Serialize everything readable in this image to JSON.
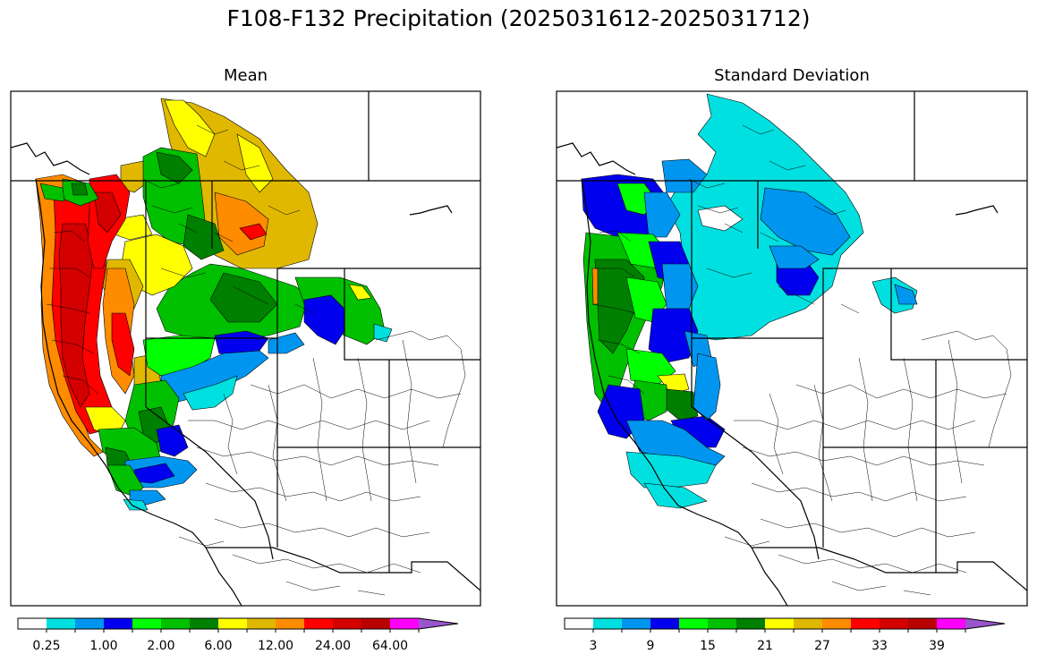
{
  "figure": {
    "title": "F108-F132 Precipitation (2025031612-2025031712)"
  },
  "panels": [
    {
      "title": "Mean",
      "colorbar": {
        "colors": [
          "#ffffff",
          "#00e0e0",
          "#0096f0",
          "#0000ee",
          "#00ff00",
          "#00c000",
          "#008000",
          "#ffff00",
          "#e0b800",
          "#ff8c00",
          "#ff0000",
          "#d40000",
          "#b80000",
          "#ff00ff",
          "#9955cc"
        ],
        "tick_labels": [
          "0.25",
          "1.00",
          "2.00",
          "6.00",
          "12.00",
          "24.00",
          "64.00"
        ]
      }
    },
    {
      "title": "Standard Deviation",
      "colorbar": {
        "colors": [
          "#ffffff",
          "#00e0e0",
          "#0096f0",
          "#0000ee",
          "#00ff00",
          "#00c000",
          "#008000",
          "#ffff00",
          "#e0b800",
          "#ff8c00",
          "#ff0000",
          "#d40000",
          "#b80000",
          "#ff00ff",
          "#9955cc"
        ],
        "tick_labels": [
          "3",
          "9",
          "15",
          "21",
          "27",
          "33",
          "39"
        ]
      }
    }
  ]
}
